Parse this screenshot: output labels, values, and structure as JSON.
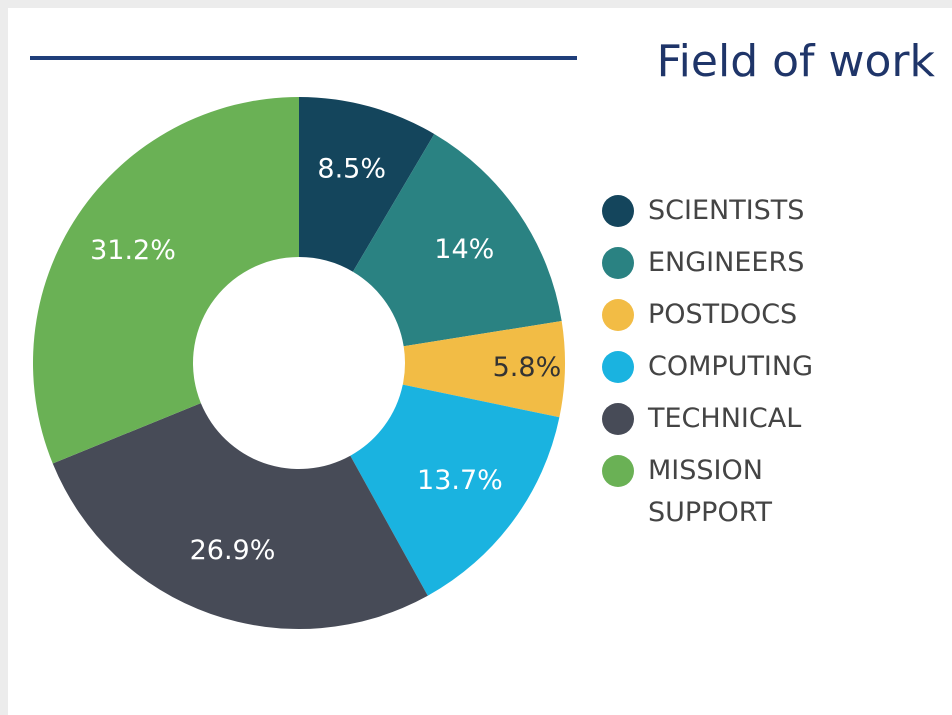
{
  "chart_data": {
    "type": "donut",
    "title": "Field of work",
    "categories": [
      "SCIENTISTS",
      "ENGINEERS",
      "POSTDOCS",
      "COMPUTING",
      "TECHNICAL",
      "MISSION SUPPORT"
    ],
    "values": [
      8.5,
      14,
      5.8,
      13.7,
      26.9,
      31.2
    ],
    "value_labels": [
      "8.5%",
      "14%",
      "5.8%",
      "13.7%",
      "26.9%",
      "31.2%"
    ],
    "colors": [
      "#14455c",
      "#2a8282",
      "#f2bc45",
      "#1ab3e0",
      "#474b57",
      "#6ab155"
    ],
    "legend": "right"
  }
}
